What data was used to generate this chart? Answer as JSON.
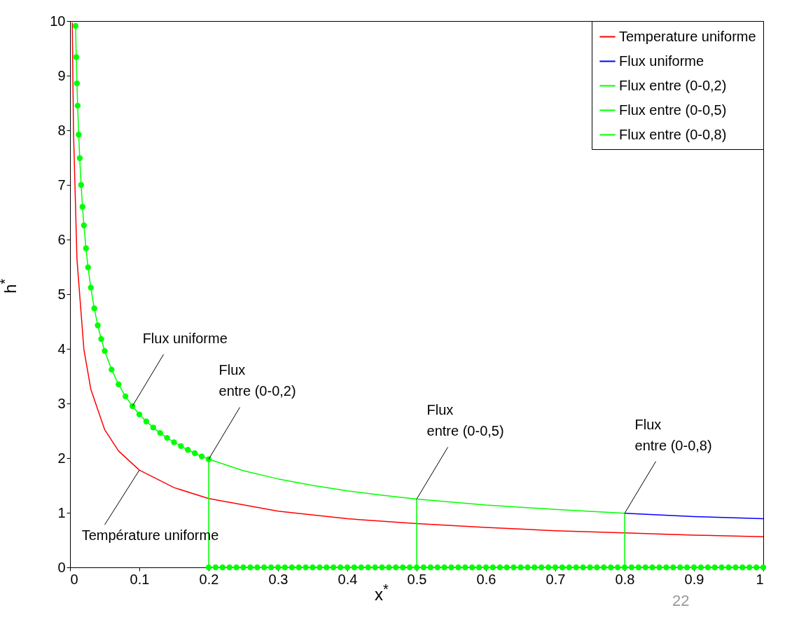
{
  "chart_data": {
    "type": "line",
    "xlabel": "x$^{*}$",
    "ylabel": "h$^{*}$",
    "xlim": [
      0,
      1
    ],
    "ylim": [
      0,
      10
    ],
    "xticks": [
      0,
      0.1,
      0.2,
      0.3,
      0.4,
      0.5,
      0.6,
      0.7,
      0.8,
      0.9,
      1
    ],
    "yticks": [
      0,
      1,
      2,
      3,
      4,
      5,
      6,
      7,
      8,
      9,
      10
    ],
    "grid": false,
    "legend": "top right",
    "series": [
      {
        "name": "Temperature uniforme",
        "color": "#ff0000",
        "x": [
          0.0032,
          0.005,
          0.01,
          0.02,
          0.03,
          0.05,
          0.07,
          0.1,
          0.15,
          0.2,
          0.3,
          0.4,
          0.5,
          0.6,
          0.7,
          0.8,
          0.9,
          1.0
        ],
        "values": [
          9.97,
          7.98,
          5.64,
          3.99,
          3.26,
          2.52,
          2.13,
          1.78,
          1.46,
          1.26,
          1.03,
          0.89,
          0.8,
          0.73,
          0.67,
          0.63,
          0.59,
          0.56
        ]
      },
      {
        "name": "Flux uniforme",
        "color": "#0000ff",
        "x": [
          0.8,
          0.9,
          1.0
        ],
        "values": [
          0.99,
          0.93,
          0.89
        ]
      },
      {
        "name": "Flux entre (0-0,2)",
        "color": "#00ff00",
        "marker": "circle",
        "x": [
          0.008,
          0.009,
          0.01,
          0.011,
          0.0125,
          0.014,
          0.016,
          0.018,
          0.02,
          0.023,
          0.026,
          0.03,
          0.035,
          0.04,
          0.045,
          0.05,
          0.06,
          0.07,
          0.08,
          0.09,
          0.1,
          0.11,
          0.12,
          0.13,
          0.14,
          0.15,
          0.16,
          0.17,
          0.18,
          0.19,
          0.2,
          0.2,
          0.21,
          0.22,
          0.23,
          0.24,
          0.25,
          0.26,
          0.27,
          0.28,
          0.29,
          0.3,
          0.31,
          0.32,
          0.33,
          0.34,
          0.35,
          0.36,
          0.37,
          0.38,
          0.39,
          0.4,
          0.41,
          0.42,
          0.43,
          0.44,
          0.45,
          0.46,
          0.47,
          0.48,
          0.49,
          0.5,
          0.51,
          0.52,
          0.53,
          0.54,
          0.55,
          0.56,
          0.57,
          0.58,
          0.59,
          0.6,
          0.61,
          0.62,
          0.63,
          0.64,
          0.65,
          0.66,
          0.67,
          0.68,
          0.69,
          0.7,
          0.71,
          0.72,
          0.73,
          0.74,
          0.75,
          0.76,
          0.77,
          0.78,
          0.79,
          0.8,
          0.81,
          0.82,
          0.83,
          0.84,
          0.85,
          0.86,
          0.87,
          0.88,
          0.89,
          0.9,
          0.91,
          0.92,
          0.93,
          0.94,
          0.95,
          0.96,
          0.97,
          0.98,
          0.99,
          1.0
        ],
        "values": [
          9.91,
          9.34,
          8.86,
          8.45,
          7.92,
          7.49,
          7.0,
          6.6,
          6.26,
          5.84,
          5.49,
          5.12,
          4.74,
          4.43,
          4.18,
          3.96,
          3.62,
          3.35,
          3.13,
          2.95,
          2.8,
          2.67,
          2.56,
          2.46,
          2.37,
          2.29,
          2.22,
          2.15,
          2.09,
          2.03,
          1.98,
          0,
          0,
          0,
          0,
          0,
          0,
          0,
          0,
          0,
          0,
          0,
          0,
          0,
          0,
          0,
          0,
          0,
          0,
          0,
          0,
          0,
          0,
          0,
          0,
          0,
          0,
          0,
          0,
          0,
          0,
          0,
          0,
          0,
          0,
          0,
          0,
          0,
          0,
          0,
          0,
          0,
          0,
          0,
          0,
          0,
          0,
          0,
          0,
          0,
          0,
          0,
          0,
          0,
          0,
          0,
          0,
          0,
          0,
          0,
          0,
          0,
          0,
          0,
          0,
          0,
          0,
          0,
          0,
          0,
          0,
          0,
          0,
          0,
          0,
          0,
          0,
          0,
          0,
          0,
          0,
          0
        ]
      },
      {
        "name": "Flux entre (0-0,5)",
        "color": "#00ff00",
        "x": [
          0.2,
          0.25,
          0.3,
          0.35,
          0.4,
          0.45,
          0.5,
          0.5
        ],
        "values": [
          1.98,
          1.77,
          1.62,
          1.5,
          1.4,
          1.32,
          1.25,
          0
        ]
      },
      {
        "name": "Flux entre (0-0,8)",
        "color": "#00ff00",
        "x": [
          0.5,
          0.6,
          0.7,
          0.8,
          0.8
        ],
        "values": [
          1.25,
          1.14,
          1.06,
          0.99,
          0
        ]
      }
    ],
    "annotations": [
      {
        "text": "Flux uniforme",
        "x": 0.09,
        "y": 2.95
      },
      {
        "text": "Flux\nentre (0-0,2)",
        "x": 0.2,
        "y": 1.98
      },
      {
        "text": "Flux\nentre (0-0,5)",
        "x": 0.5,
        "y": 1.25
      },
      {
        "text": "Flux\nentre (0-0,8)",
        "x": 0.8,
        "y": 0.99
      },
      {
        "text": "Température uniforme",
        "x": 0.1,
        "y": 1.78
      },
      "22"
    ]
  }
}
